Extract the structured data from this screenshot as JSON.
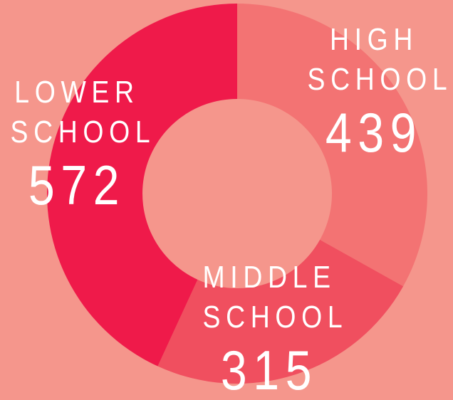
{
  "chart_data": {
    "type": "donut",
    "categories": [
      "HIGH SCHOOL",
      "MIDDLE SCHOOL",
      "LOWER SCHOOL"
    ],
    "values": [
      439,
      315,
      572
    ],
    "colors": [
      "#f37373",
      "#f04f5f",
      "#ef1a4a"
    ]
  }
}
